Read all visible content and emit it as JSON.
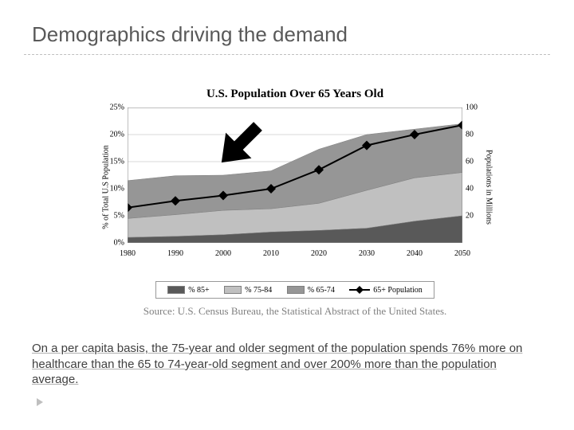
{
  "slide": {
    "title": "Demographics driving the demand",
    "body_text": "On a per capita basis, the 75-year and older segment of the population spends 76% more on healthcare than the 65 to 74-year-old segment and over 200% more than the population average."
  },
  "chart": {
    "type": "stacked_area_with_line",
    "title": "U.S. Population Over 65 Years Old",
    "y1_label": "% of Total U.S Population",
    "y2_label": "Populations in Millions",
    "x_categories": [
      "1980",
      "1990",
      "2000",
      "2010",
      "2020",
      "2030",
      "2040",
      "2050"
    ],
    "y1_ticks": [
      "0%",
      "5%",
      "10%",
      "15%",
      "20%",
      "25%"
    ],
    "y1_lim": [
      0,
      25
    ],
    "y2_ticks": [
      "20",
      "40",
      "60",
      "80",
      "100"
    ],
    "y2_lim": [
      0,
      100
    ],
    "series": {
      "pct_85_plus": {
        "label": "% 85+",
        "color": "#595959",
        "values": [
          1,
          1.2,
          1.5,
          2,
          2.3,
          2.7,
          4,
          5
        ]
      },
      "pct_75_84": {
        "label": "% 75-84",
        "color": "#c0c0c0",
        "values": [
          3.5,
          4,
          4.5,
          4.3,
          5,
          7,
          8,
          8
        ]
      },
      "pct_65_74": {
        "label": "% 65-74",
        "color": "#969696",
        "values": [
          7,
          7.2,
          6.5,
          7,
          10,
          10.3,
          9,
          9
        ]
      },
      "population_65": {
        "label": "65+ Population",
        "color": "#000000",
        "values": [
          26,
          31,
          35,
          40,
          54,
          72,
          80,
          87
        ]
      }
    },
    "source": "Source: U.S. Census Bureau, the Statistical Abstract of the United States.",
    "background_color": "#ffffff",
    "grid_color": "#d9d9d9",
    "line_width": 2,
    "marker": "diamond",
    "marker_size": 6,
    "title_fontsize": 15,
    "tick_fontsize": 10
  },
  "arrow": {
    "fill": "#000000",
    "rotation_deg": 135
  }
}
